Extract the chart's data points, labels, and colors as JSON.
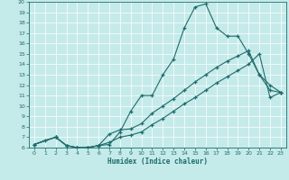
{
  "xlabel": "Humidex (Indice chaleur)",
  "xlim": [
    -0.5,
    23.5
  ],
  "ylim": [
    6,
    20
  ],
  "xticks": [
    0,
    1,
    2,
    3,
    4,
    5,
    6,
    7,
    8,
    9,
    10,
    11,
    12,
    13,
    14,
    15,
    16,
    17,
    18,
    19,
    20,
    21,
    22,
    23
  ],
  "yticks": [
    6,
    7,
    8,
    9,
    10,
    11,
    12,
    13,
    14,
    15,
    16,
    17,
    18,
    19,
    20
  ],
  "bg_color": "#c5eaea",
  "line_color": "#1e6b6b",
  "line1_x": [
    0,
    1,
    2,
    3,
    4,
    5,
    6,
    7,
    8,
    9,
    10,
    11,
    12,
    13,
    14,
    15,
    16,
    17,
    18,
    19,
    20,
    21,
    22,
    23
  ],
  "line1_y": [
    6.3,
    6.7,
    7.0,
    6.2,
    6.0,
    6.0,
    6.2,
    6.3,
    7.5,
    9.5,
    11.0,
    11.0,
    13.0,
    14.5,
    17.5,
    19.5,
    19.8,
    17.5,
    16.7,
    16.7,
    15.0,
    13.0,
    12.0,
    11.3
  ],
  "line2_x": [
    0,
    2,
    3,
    4,
    5,
    6,
    7,
    8,
    9,
    10,
    11,
    12,
    13,
    14,
    15,
    16,
    17,
    18,
    19,
    20,
    21,
    22,
    23
  ],
  "line2_y": [
    6.3,
    7.0,
    6.2,
    6.0,
    6.0,
    6.2,
    7.3,
    7.7,
    7.8,
    8.3,
    9.3,
    10.0,
    10.7,
    11.5,
    12.3,
    13.0,
    13.7,
    14.3,
    14.8,
    15.3,
    13.0,
    11.5,
    11.3
  ],
  "line3_x": [
    0,
    2,
    3,
    4,
    5,
    6,
    7,
    8,
    9,
    10,
    11,
    12,
    13,
    14,
    15,
    16,
    17,
    18,
    19,
    20,
    21,
    22,
    23
  ],
  "line3_y": [
    6.3,
    7.0,
    6.2,
    6.0,
    6.0,
    6.2,
    6.5,
    7.0,
    7.2,
    7.5,
    8.2,
    8.8,
    9.5,
    10.2,
    10.8,
    11.5,
    12.2,
    12.8,
    13.4,
    14.0,
    15.0,
    10.8,
    11.3
  ]
}
